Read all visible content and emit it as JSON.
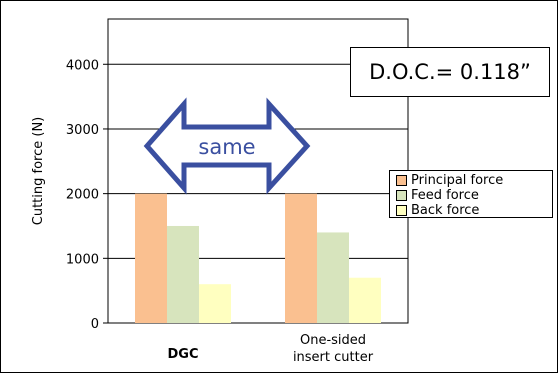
{
  "chart_data": {
    "type": "bar",
    "categories": [
      "DGC",
      "One-sided\ninsert cutter"
    ],
    "series": [
      {
        "name": "Principal force",
        "values": [
          2000,
          2000
        ],
        "color": "#fac090"
      },
      {
        "name": "Feed force",
        "values": [
          1500,
          1400
        ],
        "color": "#d7e4bd"
      },
      {
        "name": "Back force",
        "values": [
          600,
          700
        ],
        "color": "#ffffc0"
      }
    ],
    "ylabel": "Cutting force (N)",
    "ylim": [
      0,
      4700
    ],
    "yticks": [
      0,
      1000,
      2000,
      3000,
      4000
    ],
    "grid": true,
    "legend": "right",
    "annotations": {
      "doc_label": "D.O.C.= 0.118”",
      "arrow_label": "same",
      "arrow_color": "#3a4fa0"
    }
  }
}
